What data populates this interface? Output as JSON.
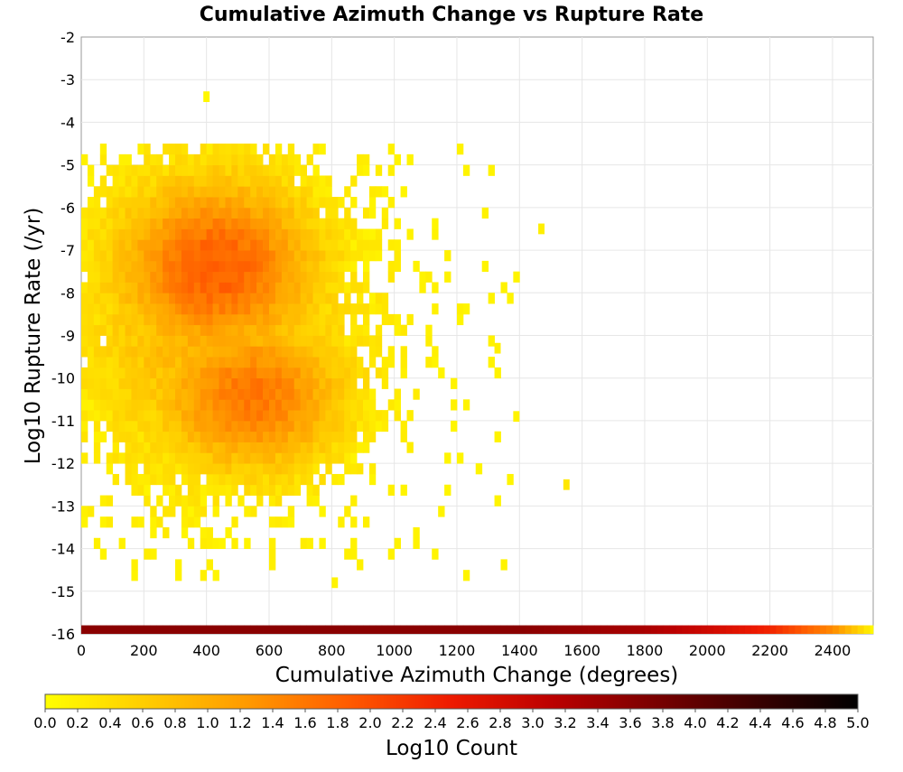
{
  "chart_data": {
    "type": "heatmap",
    "title": "Cumulative Azimuth Change vs Rupture Rate",
    "xlabel": "Cumulative Azimuth Change (degrees)",
    "ylabel": "Log10 Rupture Rate (/yr)",
    "xlim": [
      0,
      2530
    ],
    "ylim": [
      -16,
      -2
    ],
    "x_ticks": [
      "0",
      "200",
      "400",
      "600",
      "800",
      "1000",
      "1200",
      "1400",
      "1600",
      "1800",
      "2000",
      "2200",
      "2400"
    ],
    "y_ticks": [
      "-2",
      "-3",
      "-4",
      "-5",
      "-6",
      "-7",
      "-8",
      "-9",
      "-10",
      "-11",
      "-12",
      "-13",
      "-14",
      "-15",
      "-16"
    ],
    "x_tick_values": [
      0,
      200,
      400,
      600,
      800,
      1000,
      1200,
      1400,
      1600,
      1800,
      2000,
      2200,
      2400
    ],
    "y_tick_values": [
      -2,
      -3,
      -4,
      -5,
      -6,
      -7,
      -8,
      -9,
      -10,
      -11,
      -12,
      -13,
      -14,
      -15,
      -16
    ],
    "grid": true,
    "colorbar": {
      "label": "Log10 Count",
      "min": 0.0,
      "max": 5.0,
      "ticks": [
        "0.0",
        "0.2",
        "0.4",
        "0.6",
        "0.8",
        "1.0",
        "1.2",
        "1.4",
        "1.6",
        "1.8",
        "2.0",
        "2.2",
        "2.4",
        "2.6",
        "2.8",
        "3.0",
        "3.2",
        "3.4",
        "3.6",
        "3.8",
        "4.0",
        "4.2",
        "4.4",
        "4.6",
        "4.8",
        "5.0"
      ],
      "tick_values": [
        0.0,
        0.2,
        0.4,
        0.6,
        0.8,
        1.0,
        1.2,
        1.4,
        1.6,
        1.8,
        2.0,
        2.2,
        2.4,
        2.6,
        2.8,
        3.0,
        3.2,
        3.4,
        3.6,
        3.8,
        4.0,
        4.2,
        4.4,
        4.6,
        4.8,
        5.0
      ],
      "colors": [
        "#ffff00",
        "#ffcc00",
        "#ff9900",
        "#ff5a00",
        "#ee1a00",
        "#bb0000",
        "#7a0000",
        "#3a0000",
        "#000000"
      ]
    },
    "density": {
      "x_bin_width": 20,
      "y_bin_height": 0.25,
      "x_range": [
        0,
        1400
      ],
      "y_range": [
        -14.75,
        -4.5
      ],
      "components": [
        {
          "center": [
            430,
            -7.4
          ],
          "spread": [
            230,
            1.5
          ],
          "peak_log10_count": 1.85
        },
        {
          "center": [
            540,
            -10.4
          ],
          "spread": [
            220,
            1.3
          ],
          "peak_log10_count": 1.6
        },
        {
          "center": [
            430,
            -8.7
          ],
          "spread": [
            300,
            2.5
          ],
          "peak_log10_count": 1.0
        }
      ],
      "outlier_cells": [
        [
          1470,
          -6.5,
          0.2
        ],
        [
          1550,
          -12.5,
          0.3
        ],
        [
          1390,
          -10.9,
          0.15
        ],
        [
          810,
          -14.8,
          0.15
        ],
        [
          400,
          -3.4,
          0.1
        ],
        [
          1330,
          -9.3,
          0.2
        ]
      ]
    },
    "bottom_row": {
      "y": -15.9,
      "description_points": [
        [
          0,
          3.6
        ],
        [
          1400,
          3.6
        ],
        [
          1800,
          3.3
        ],
        [
          2000,
          2.9
        ],
        [
          2200,
          2.4
        ],
        [
          2400,
          1.4
        ],
        [
          2530,
          0.1
        ]
      ]
    }
  }
}
